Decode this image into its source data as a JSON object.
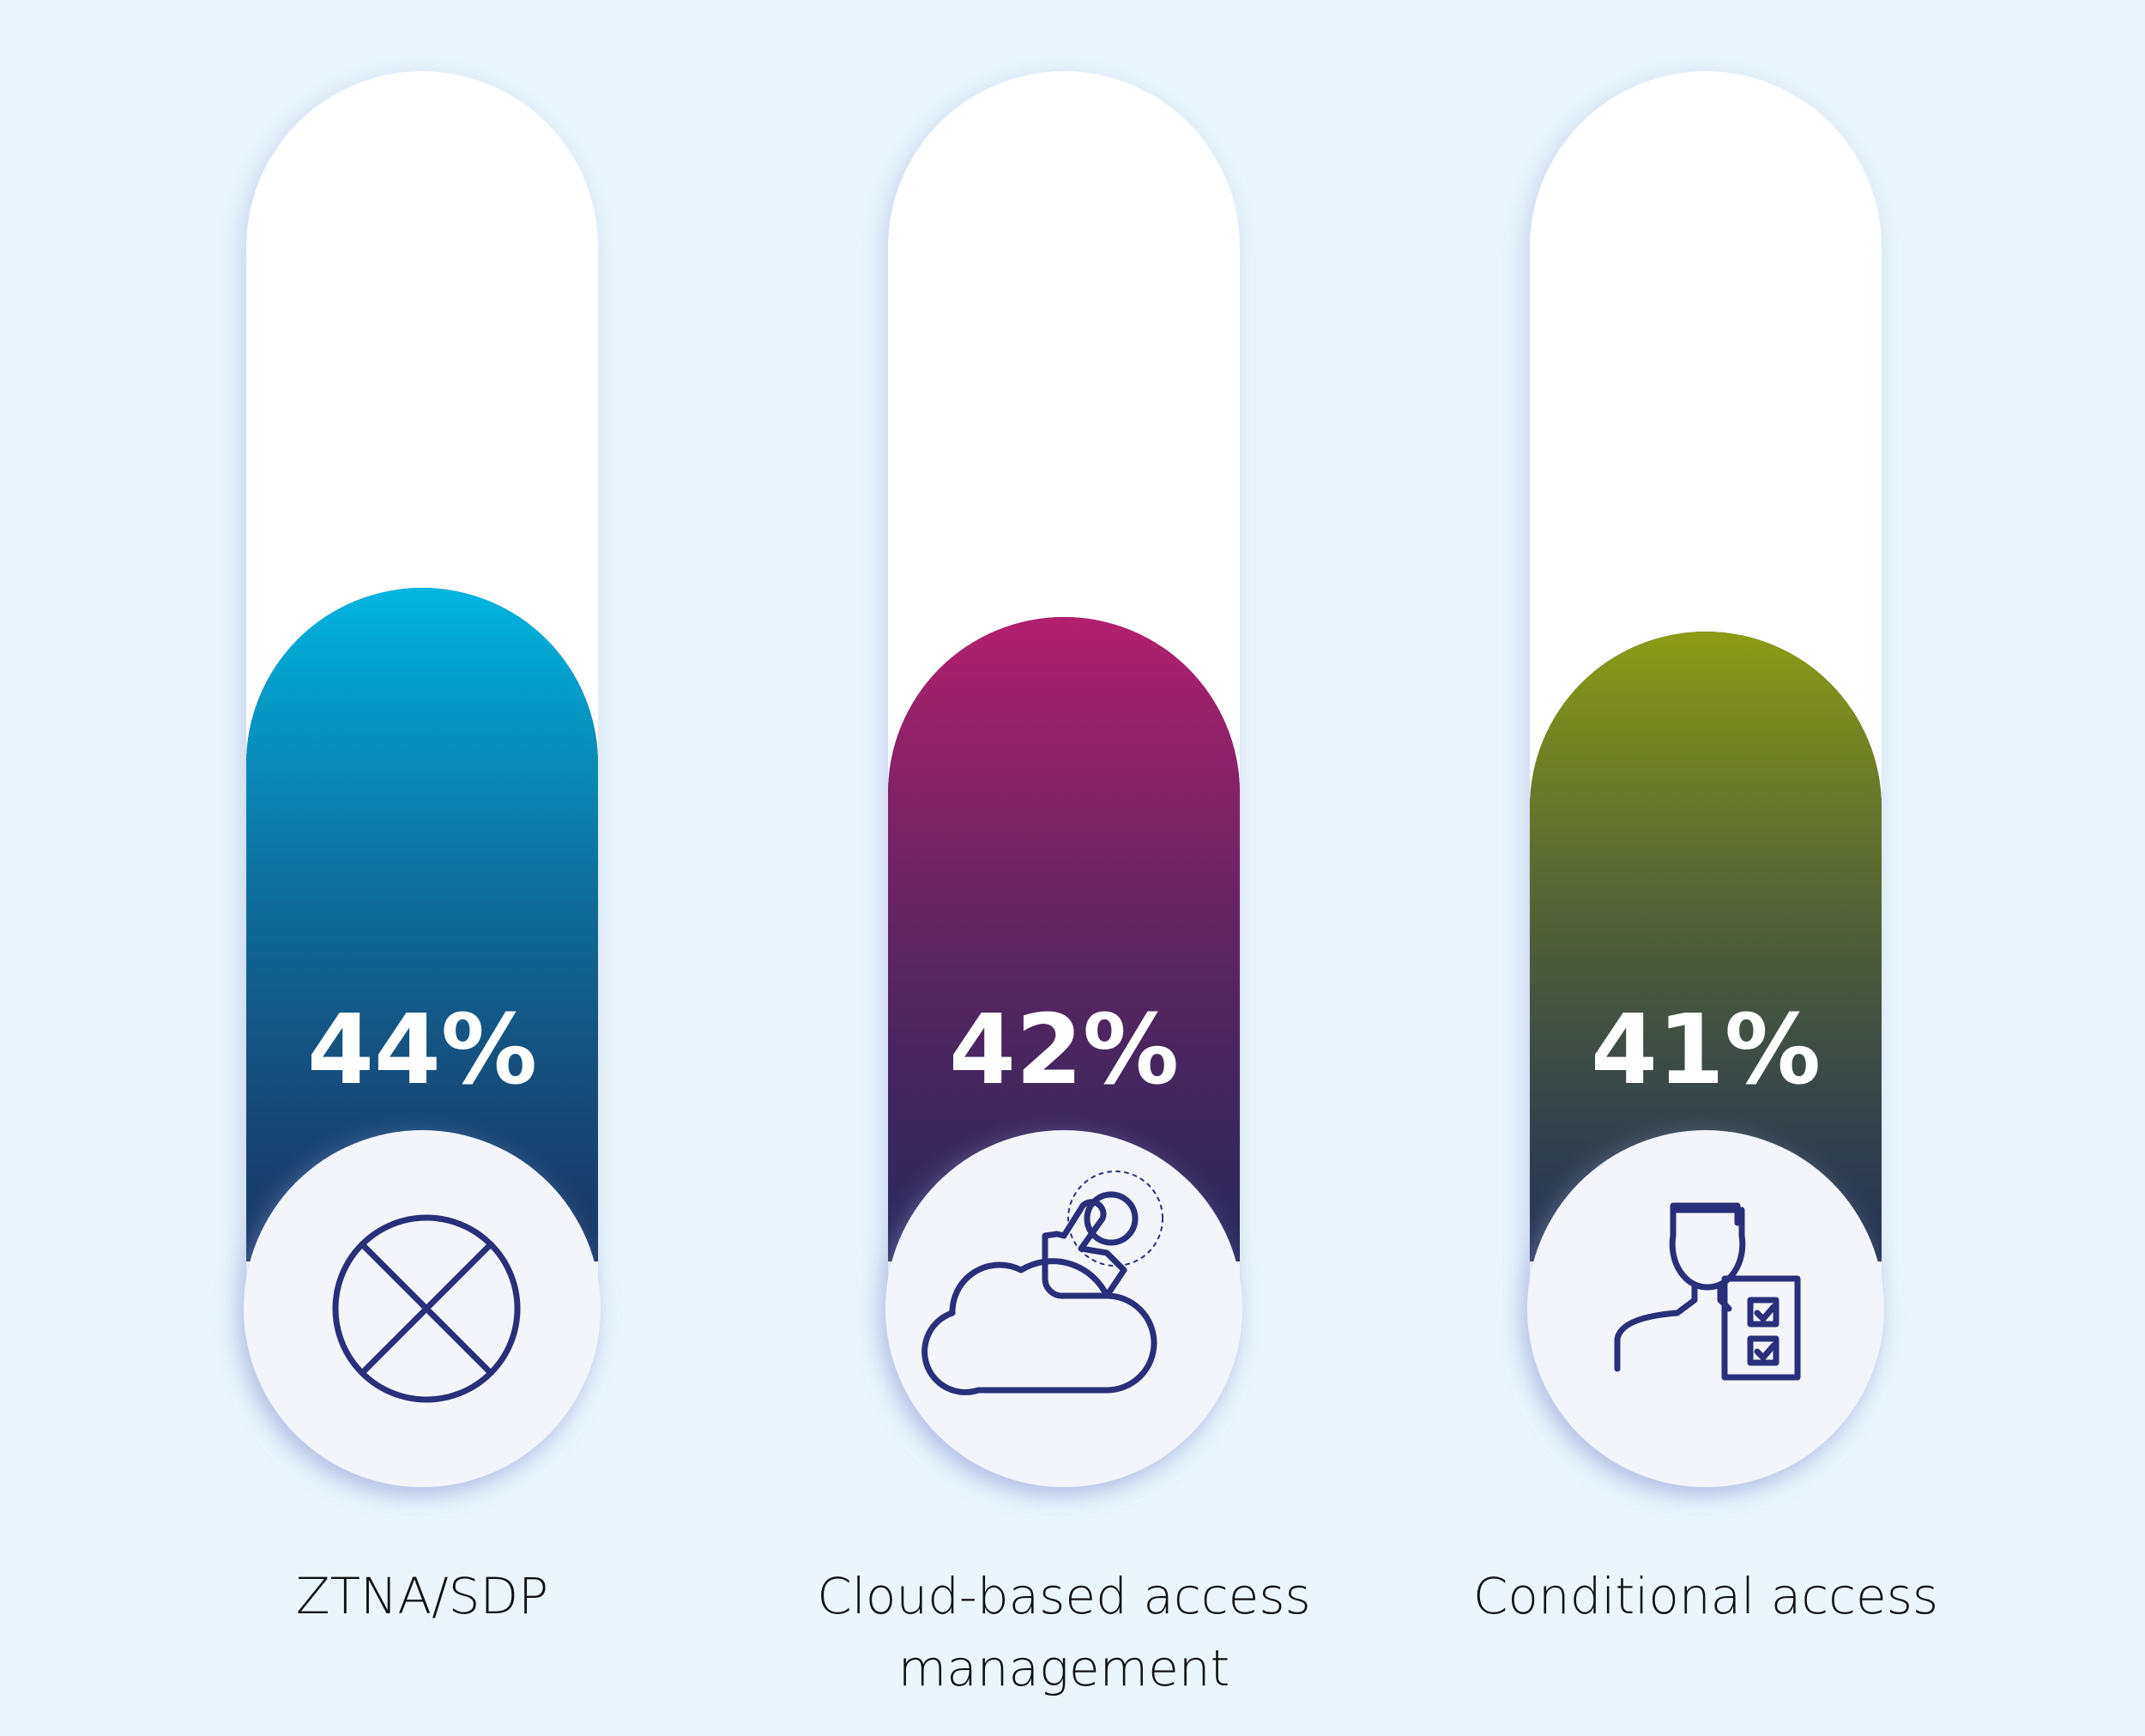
{
  "chart_data": {
    "type": "bar",
    "categories": [
      "ZTNA/SDP",
      "Cloud-based access management",
      "Conditional access"
    ],
    "values": [
      44,
      42,
      41
    ],
    "value_labels": [
      "44%",
      "42%",
      "41%"
    ],
    "colors": [
      "#00b6e2",
      "#b41f6c",
      "#8c9c14"
    ]
  }
}
